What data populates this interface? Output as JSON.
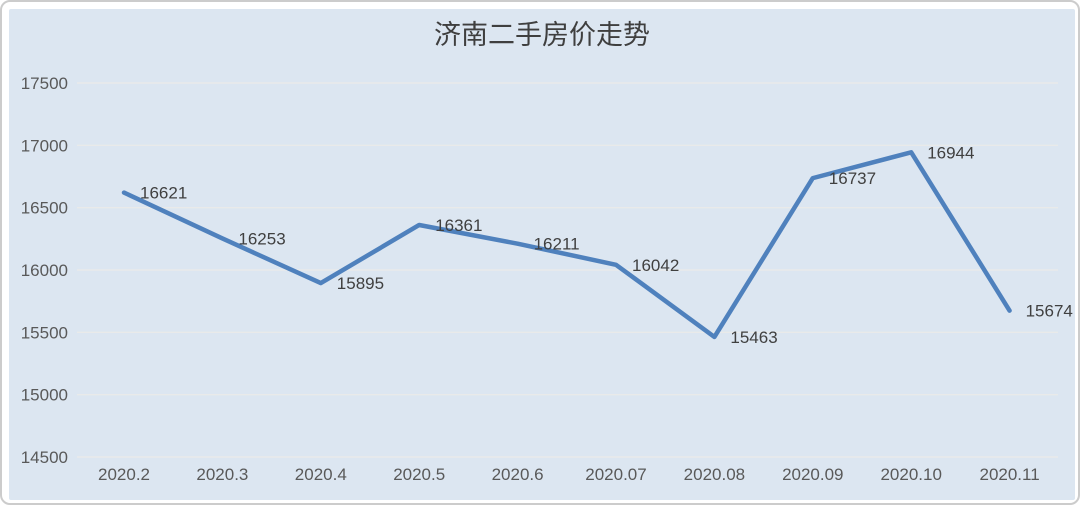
{
  "chart_data": {
    "type": "line",
    "title": "济南二手房价走势",
    "categories": [
      "2020.2",
      "2020.3",
      "2020.4",
      "2020.5",
      "2020.6",
      "2020.07",
      "2020.08",
      "2020.09",
      "2020.10",
      "2020.11"
    ],
    "values": [
      16621,
      16253,
      15895,
      16361,
      16211,
      16042,
      15463,
      16737,
      16944,
      15674
    ],
    "series_name": "济南二手房价",
    "xlabel": "",
    "ylabel": "",
    "ylim": [
      14500,
      17500
    ],
    "yticks": [
      14500,
      15000,
      15500,
      16000,
      16500,
      17000,
      17500
    ],
    "grid": true,
    "legend_position": "none",
    "data_labels": true,
    "colors": {
      "line": "#4f81bd",
      "plot_background": "#dce6f1",
      "gridline": "#e9eaea",
      "title_text": "#3f3f3f",
      "axis_text": "#595959",
      "label_text": "#404040",
      "frame_border": "#cccccc",
      "frame_background": "#ffffff"
    }
  }
}
